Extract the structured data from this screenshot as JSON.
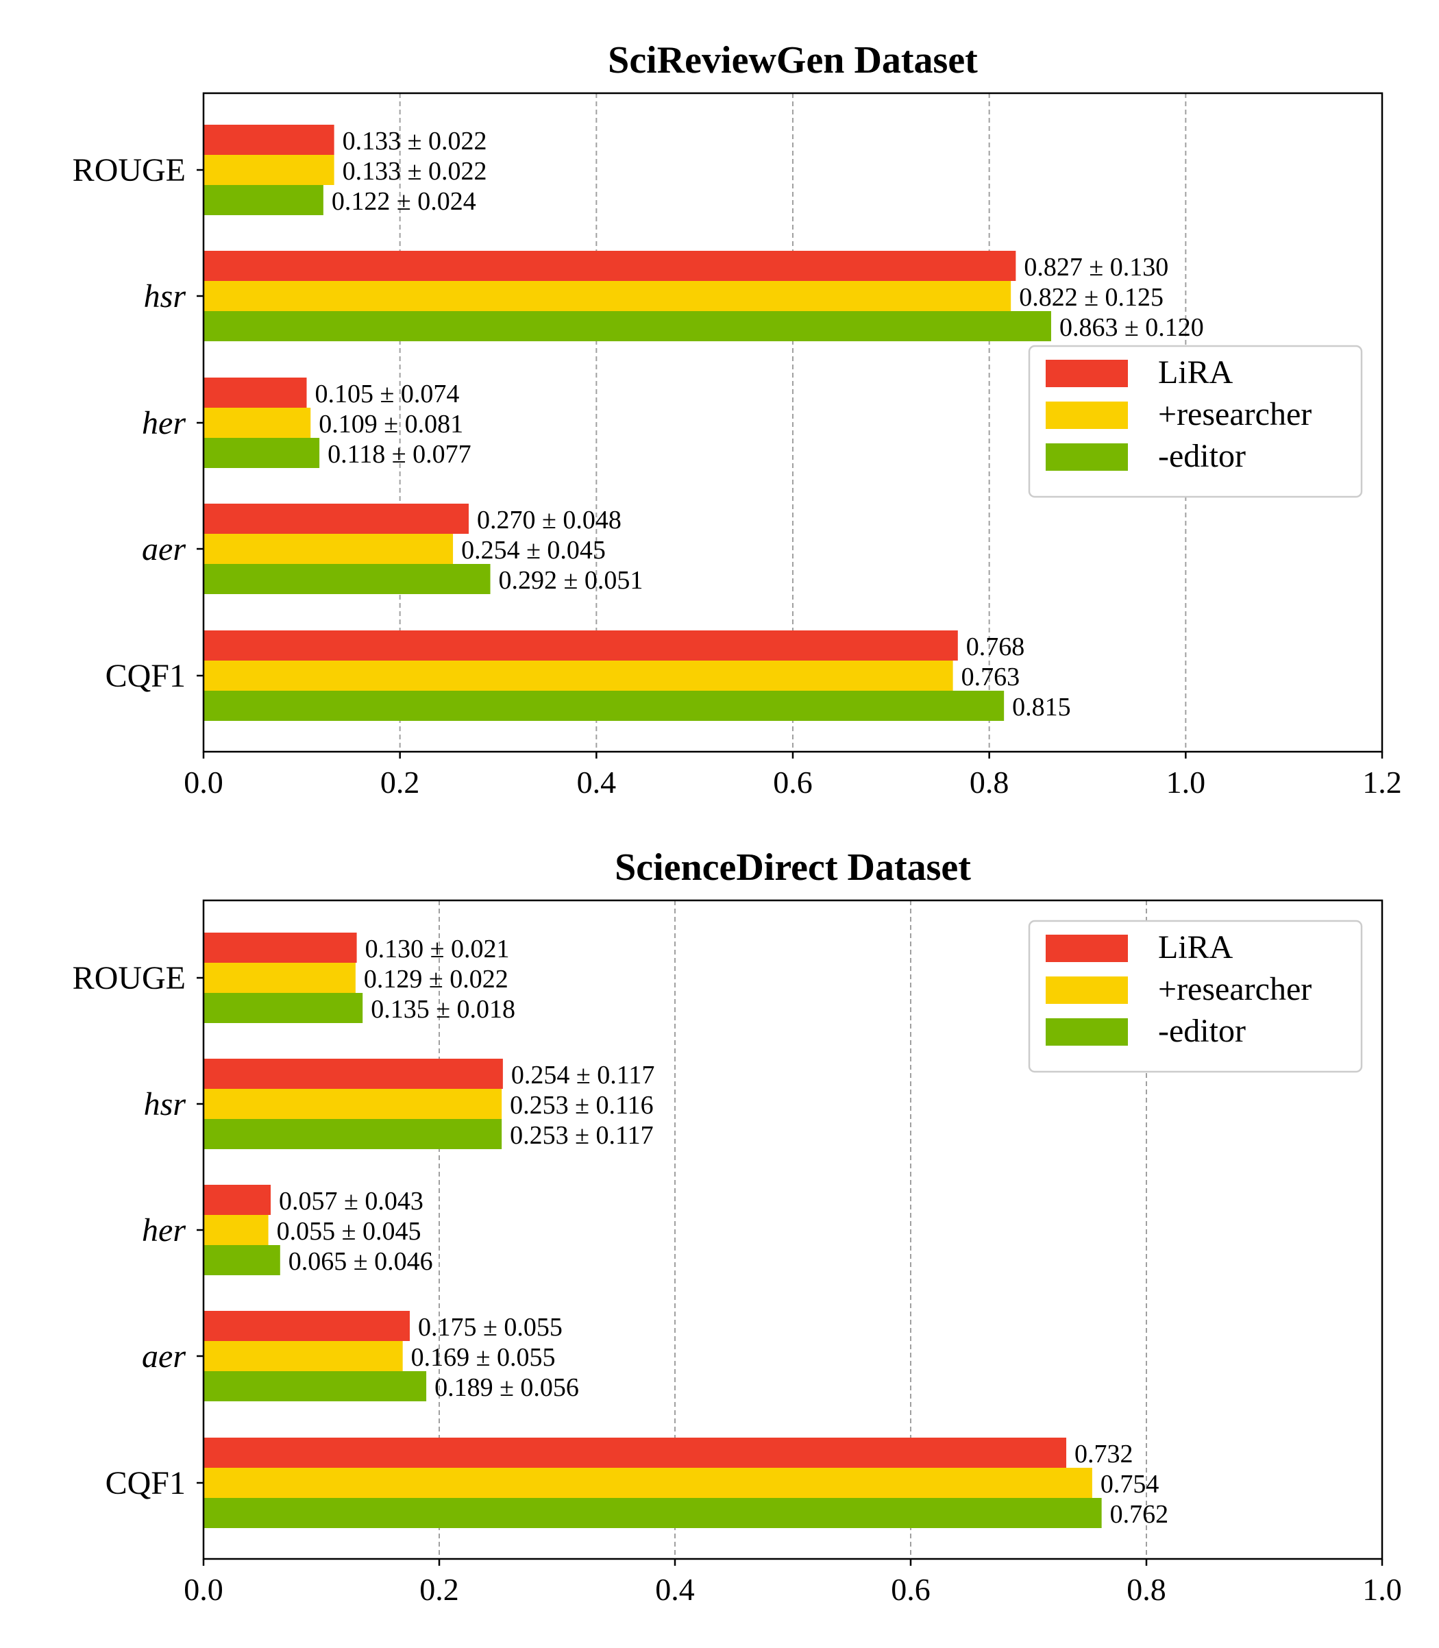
{
  "chart_data": [
    {
      "type": "bar",
      "orientation": "horizontal",
      "title": "SciReviewGen Dataset",
      "categories": [
        "ROUGE",
        "hsr",
        "her",
        "aer",
        "CQF1"
      ],
      "categories_italic": [
        false,
        true,
        true,
        true,
        false
      ],
      "series": [
        {
          "name": "LiRA",
          "color": "#ee3d2a",
          "values": [
            0.133,
            0.827,
            0.105,
            0.27,
            0.768
          ],
          "labels": [
            "0.133 ± 0.022",
            "0.827 ± 0.130",
            "0.105 ± 0.074",
            "0.270 ± 0.048",
            "0.768"
          ]
        },
        {
          "name": "+researcher",
          "color": "#fad000",
          "values": [
            0.133,
            0.822,
            0.109,
            0.254,
            0.763
          ],
          "labels": [
            "0.133 ± 0.022",
            "0.822 ± 0.125",
            "0.109 ± 0.081",
            "0.254 ± 0.045",
            "0.763"
          ]
        },
        {
          "name": "-editor",
          "color": "#78b700",
          "values": [
            0.122,
            0.863,
            0.118,
            0.292,
            0.815
          ],
          "labels": [
            "0.122 ± 0.024",
            "0.863 ± 0.120",
            "0.118 ± 0.077",
            "0.292 ± 0.051",
            "0.815"
          ]
        }
      ],
      "xlim": [
        0,
        1.2
      ],
      "xticks": [
        0.0,
        0.2,
        0.4,
        0.6,
        0.8,
        1.0,
        1.2
      ],
      "xtick_labels": [
        "0.0",
        "0.2",
        "0.4",
        "0.6",
        "0.8",
        "1.0",
        "1.2"
      ],
      "grid": "x-dashed",
      "legend_position": "right"
    },
    {
      "type": "bar",
      "orientation": "horizontal",
      "title": "ScienceDirect Dataset",
      "categories": [
        "ROUGE",
        "hsr",
        "her",
        "aer",
        "CQF1"
      ],
      "categories_italic": [
        false,
        true,
        true,
        true,
        false
      ],
      "series": [
        {
          "name": "LiRA",
          "color": "#ee3d2a",
          "values": [
            0.13,
            0.254,
            0.057,
            0.175,
            0.732
          ],
          "labels": [
            "0.130 ± 0.021",
            "0.254 ± 0.117",
            "0.057 ± 0.043",
            "0.175 ± 0.055",
            "0.732"
          ]
        },
        {
          "name": "+researcher",
          "color": "#fad000",
          "values": [
            0.129,
            0.253,
            0.055,
            0.169,
            0.754
          ],
          "labels": [
            "0.129 ± 0.022",
            "0.253 ± 0.116",
            "0.055 ± 0.045",
            "0.169 ± 0.055",
            "0.754"
          ]
        },
        {
          "name": "-editor",
          "color": "#78b700",
          "values": [
            0.135,
            0.253,
            0.065,
            0.189,
            0.762
          ],
          "labels": [
            "0.135 ± 0.018",
            "0.253 ± 0.117",
            "0.065 ± 0.046",
            "0.189 ± 0.056",
            "0.762"
          ]
        }
      ],
      "xlim": [
        0,
        1.0
      ],
      "xticks": [
        0.0,
        0.2,
        0.4,
        0.6,
        0.8,
        1.0
      ],
      "xtick_labels": [
        "0.0",
        "0.2",
        "0.4",
        "0.6",
        "0.8",
        "1.0"
      ],
      "grid": "x-dashed",
      "legend_position": "top-right"
    }
  ]
}
